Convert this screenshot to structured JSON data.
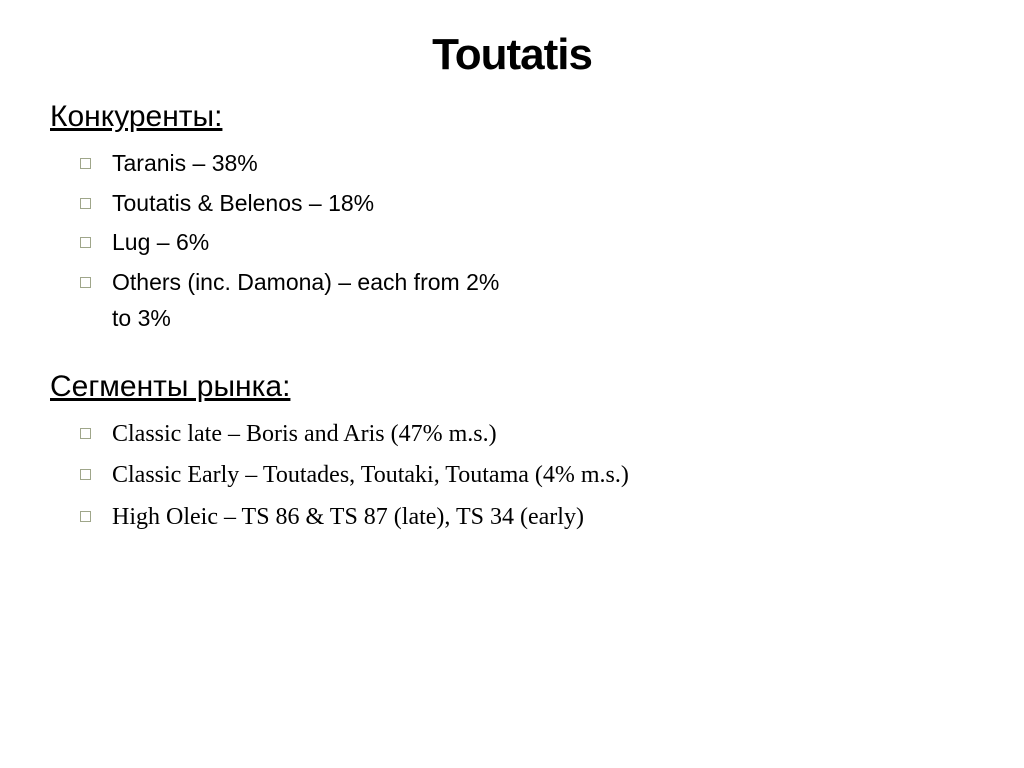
{
  "title": "Toutatis",
  "section1": {
    "heading": "Конкуренты:",
    "items": [
      "Taranis – 38%",
      "Toutatis & Belenos – 18%",
      "Lug – 6%",
      "Others (inc. Damona) – each from 2% to 3%"
    ]
  },
  "section2": {
    "heading": "Сегменты рынка:",
    "items": [
      "Classic late – Boris and Aris (47% m.s.)",
      "Classic Early – Toutades, Toutaki, Toutama (4% m.s.)",
      "High Oleic – TS 86 & TS 87 (late), TS 34 (early)"
    ]
  },
  "styling": {
    "background_color": "#ffffff",
    "text_color": "#000000",
    "bullet_color": "#9fa68a",
    "title_fontsize": 44,
    "heading_fontsize": 30,
    "body_fontsize": 23,
    "section1_font": "Arial",
    "section2_font": "Times New Roman"
  }
}
